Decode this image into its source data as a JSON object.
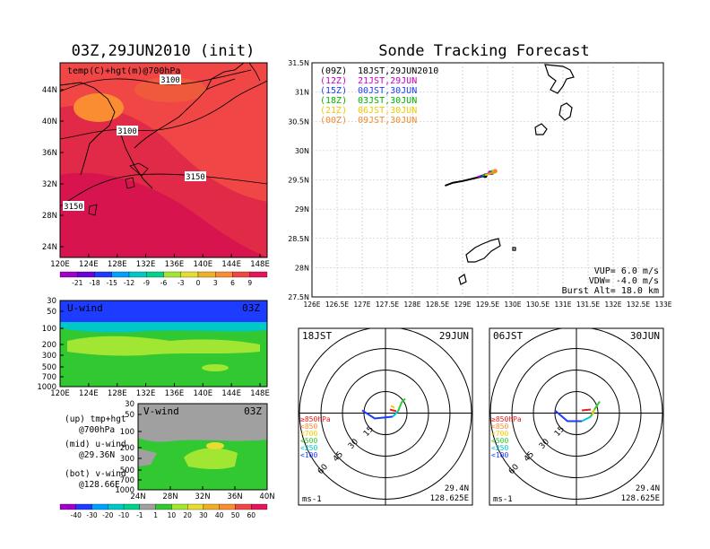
{
  "titles": {
    "left": "03Z,29JUN2010 (init)",
    "right": "Sonde Tracking Forecast"
  },
  "map_panel": {
    "label": "temp(C)+hgt(m)@700hPa",
    "lon_ticks": [
      "120E",
      "124E",
      "128E",
      "132E",
      "136E",
      "140E",
      "144E",
      "148E"
    ],
    "lat_ticks": [
      "44N",
      "40N",
      "36N",
      "32N",
      "28N",
      "24N"
    ],
    "contours": [
      "3100",
      "3100",
      "3150",
      "3150"
    ],
    "colorbar_ticks": [
      "-21",
      "-18",
      "-15",
      "-12",
      "-9",
      "-6",
      "-3",
      "0",
      "3",
      "6",
      "9"
    ],
    "colorbar_colors": [
      "#a000c8",
      "#6e00dc",
      "#1e3cff",
      "#00a0ff",
      "#00c8c8",
      "#00d28c",
      "#a0e632",
      "#e6dc32",
      "#f0af28",
      "#fa8c32",
      "#f04646",
      "#e6145a"
    ]
  },
  "uwind_panel": {
    "label": "U-wind",
    "time": "03Z",
    "p_ticks": [
      "30",
      "50",
      "100",
      "200",
      "300",
      "500",
      "700",
      "1000"
    ],
    "lon_ticks": [
      "120E",
      "124E",
      "128E",
      "132E",
      "136E",
      "140E",
      "144E",
      "148E"
    ]
  },
  "vwind_panel": {
    "label": "V-wind",
    "time": "03Z",
    "p_ticks": [
      "30",
      "50",
      "100",
      "200",
      "300",
      "500",
      "700",
      "1000"
    ],
    "lat_ticks": [
      "24N",
      "28N",
      "32N",
      "36N",
      "40N"
    ]
  },
  "notes": {
    "up1": "(up) tmp+hgt",
    "up2": "@700hPa",
    "mid1": "(mid) u-wind",
    "mid2": "@29.36N",
    "bot1": "(bot) v-wind",
    "bot2": "@128.66E"
  },
  "wind_colorbar": {
    "ticks": [
      "-40",
      "-30",
      "-20",
      "-10",
      "-1",
      "1",
      "10",
      "20",
      "30",
      "40",
      "50",
      "60"
    ],
    "colors": [
      "#a000c8",
      "#1e3cff",
      "#00a0ff",
      "#00c8c8",
      "#00d28c",
      "#a0a0a0",
      "#32c832",
      "#a0e632",
      "#e6dc32",
      "#f0af28",
      "#fa8c32",
      "#f04646",
      "#e6145a"
    ]
  },
  "track_panel": {
    "legend": [
      {
        "code": "(09Z)",
        "jst": "18JST,29JUN2010",
        "color": "#000000"
      },
      {
        "code": "(12Z)",
        "jst": "21JST,29JUN",
        "color": "#c800c8"
      },
      {
        "code": "(15Z)",
        "jst": "00JST,30JUN",
        "color": "#1e3cff"
      },
      {
        "code": "(18Z)",
        "jst": "03JST,30JUN",
        "color": "#00b400"
      },
      {
        "code": "(21Z)",
        "jst": "06JST,30JUN",
        "color": "#f0c800"
      },
      {
        "code": "(00Z)",
        "jst": "09JST,30JUN",
        "color": "#f08c32"
      }
    ],
    "lat_ticks": [
      "31.5N",
      "31N",
      "30.5N",
      "30N",
      "29.5N",
      "29N",
      "28.5N",
      "28N",
      "27.5N"
    ],
    "lon_ticks": [
      "126E",
      "126.5E",
      "127E",
      "127.5E",
      "128E",
      "128.5E",
      "129E",
      "129.5E",
      "130E",
      "130.5E",
      "131E",
      "131.5E",
      "132E",
      "132.5E",
      "133E"
    ],
    "vup": "VUP= 6.0 m/s",
    "vdw": "VDW= -4.0 m/s",
    "burst": "Burst Alt= 18.0 km"
  },
  "chart_data": {
    "type": "line",
    "title": "Sonde Tracking Forecast",
    "xlim": [
      126,
      133
    ],
    "ylim": [
      27.5,
      31.5
    ],
    "series": [
      {
        "name": "(09Z) 18JST,29JUN2010",
        "x": [
          128.65,
          128.8,
          129.0,
          129.25,
          129.45
        ],
        "y": [
          29.4,
          29.45,
          29.48,
          29.53,
          29.57
        ]
      },
      {
        "name": "(12Z) 21JST,29JUN",
        "x": [
          129.3,
          129.45,
          129.55
        ],
        "y": [
          29.55,
          29.59,
          29.62
        ]
      },
      {
        "name": "(15Z) 00JST,30JUN",
        "x": [
          129.35,
          129.5,
          129.58
        ],
        "y": [
          29.56,
          29.6,
          29.62
        ]
      },
      {
        "name": "(18Z) 03JST,30JUN",
        "x": [
          129.4,
          129.55,
          129.6
        ],
        "y": [
          29.57,
          29.61,
          29.63
        ]
      },
      {
        "name": "(21Z) 06JST,30JUN",
        "x": [
          129.45,
          129.6,
          129.63
        ],
        "y": [
          29.58,
          29.62,
          29.64
        ]
      },
      {
        "name": "(00Z) 09JST,30JUN",
        "x": [
          129.5,
          129.62,
          129.65
        ],
        "y": [
          29.6,
          29.63,
          29.65
        ]
      }
    ]
  },
  "hodo_left": {
    "time": "18JST",
    "date": "29JUN",
    "rings": [
      "15",
      "30",
      "45",
      "60"
    ],
    "legend": [
      {
        "t": "≥850hPa",
        "c": "#e61e1e"
      },
      {
        "t": "<850",
        "c": "#fa8c32"
      },
      {
        "t": "<700",
        "c": "#f0c800"
      },
      {
        "t": "<500",
        "c": "#32c832"
      },
      {
        "t": "<250",
        "c": "#00c8c8"
      },
      {
        "t": "<100",
        "c": "#1e3cff"
      }
    ],
    "unit": "ms-1",
    "lat": "29.4N",
    "lon": "128.625E"
  },
  "hodo_right": {
    "time": "06JST",
    "date": "30JUN",
    "rings": [
      "15",
      "30",
      "45",
      "60"
    ],
    "legend": [
      {
        "t": "≥850hPa",
        "c": "#e61e1e"
      },
      {
        "t": "<850",
        "c": "#fa8c32"
      },
      {
        "t": "<700",
        "c": "#f0c800"
      },
      {
        "t": "<500",
        "c": "#32c832"
      },
      {
        "t": "<250",
        "c": "#00c8c8"
      },
      {
        "t": "<100",
        "c": "#1e3cff"
      }
    ],
    "unit": "ms-1",
    "lat": "29.4N",
    "lon": "128.625E"
  }
}
